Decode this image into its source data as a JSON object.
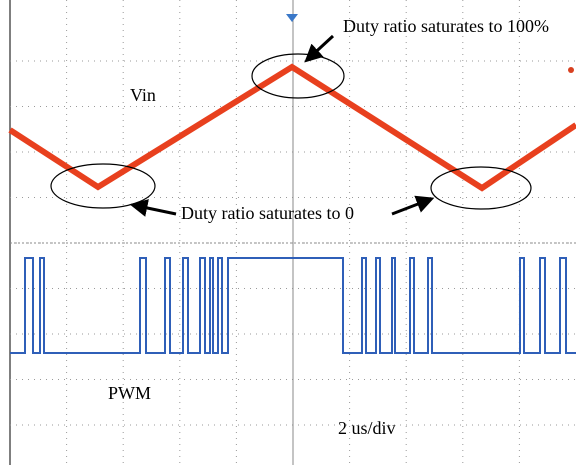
{
  "labels": {
    "top_note": "Duty ratio saturates to 100%",
    "vin": "Vin",
    "bottom_note": "Duty ratio saturates to 0",
    "pwm": "PWM",
    "timebase": "2 us/div"
  }
}
